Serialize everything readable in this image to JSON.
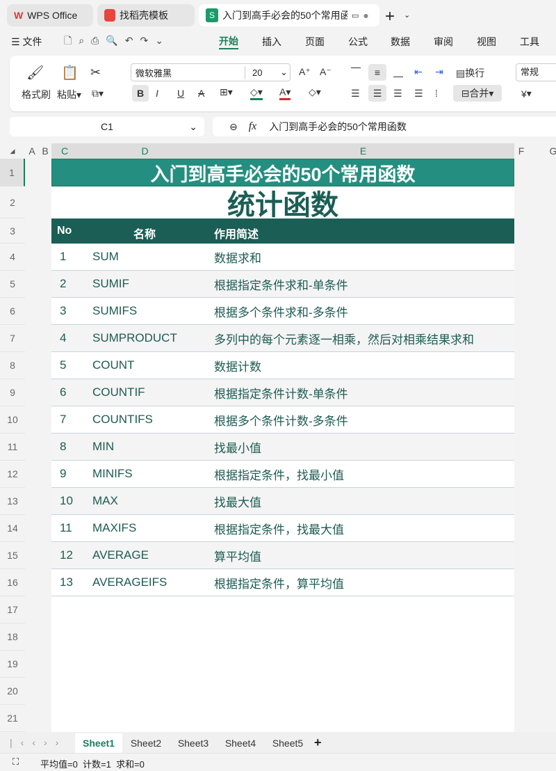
{
  "tabs": [
    {
      "label": "WPS Office",
      "icon": "wps-logo"
    },
    {
      "label": "找稻壳模板",
      "icon": "docer-logo"
    },
    {
      "label": "入门到高手必会的50个常用函数",
      "icon": "spreadsheet-s-icon"
    }
  ],
  "menu": {
    "file": "文件",
    "items": [
      "开始",
      "插入",
      "页面",
      "公式",
      "数据",
      "审阅",
      "视图",
      "工具"
    ],
    "active": "开始"
  },
  "ribbon": {
    "format_painter": "格式刷",
    "paste": "粘贴",
    "font": "微软雅黑",
    "font_size": "20",
    "wrap": "换行",
    "merge": "合并",
    "number_format": "常规",
    "currency": "¥"
  },
  "formula_bar": {
    "cell": "C1",
    "fx": "fx",
    "value": "入门到高手必会的50个常用函数"
  },
  "columns": [
    "A",
    "B",
    "C",
    "D",
    "E",
    "F",
    "G"
  ],
  "row_numbers": [
    "1",
    "2",
    "3",
    "4",
    "5",
    "6",
    "7",
    "8",
    "9",
    "10",
    "11",
    "12",
    "13",
    "14",
    "15",
    "16",
    "17",
    "18",
    "19",
    "20",
    "21"
  ],
  "sheet": {
    "title": "入门到高手必会的50个常用函数",
    "subtitle": "统计函数",
    "headers": [
      "No",
      "名称",
      "作用简述"
    ],
    "rows": [
      [
        "1",
        "SUM",
        "数据求和"
      ],
      [
        "2",
        "SUMIF",
        "根据指定条件求和-单条件"
      ],
      [
        "3",
        "SUMIFS",
        "根据多个条件求和-多条件"
      ],
      [
        "4",
        "SUMPRODUCT",
        "多列中的每个元素逐一相乘，然后对相乘结果求和"
      ],
      [
        "5",
        "COUNT",
        "数据计数"
      ],
      [
        "6",
        "COUNTIF",
        "根据指定条件计数-单条件"
      ],
      [
        "7",
        "COUNTIFS",
        "根据多个条件计数-多条件"
      ],
      [
        "8",
        "MIN",
        "找最小值"
      ],
      [
        "9",
        "MINIFS",
        "根据指定条件，找最小值"
      ],
      [
        "10",
        "MAX",
        "找最大值"
      ],
      [
        "11",
        "MAXIFS",
        "根据指定条件，找最大值"
      ],
      [
        "12",
        "AVERAGE",
        "算平均值"
      ],
      [
        "13",
        "AVERAGEIFS",
        "根据指定条件，算平均值"
      ]
    ]
  },
  "sheet_tabs": [
    "Sheet1",
    "Sheet2",
    "Sheet3",
    "Sheet4",
    "Sheet5"
  ],
  "status": "平均值=0  计数=1  求和=0",
  "colors": {
    "title_bg": "#248f80",
    "header_bg": "#1b5e55",
    "accent": "#1a7f5a",
    "text": "#1d5b52"
  }
}
